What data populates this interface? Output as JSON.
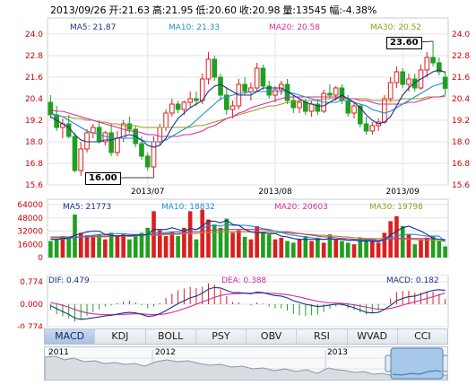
{
  "header": {
    "date": "2013/09/26",
    "open": "开:21.63",
    "high": "高:21.95",
    "low": "低:20.60",
    "close": "收:20.98",
    "volume": "量:13545",
    "change": "幅:-4.38%"
  },
  "price_legend": {
    "ma5": "MA5: 21.87",
    "ma10": "MA10: 21.33",
    "ma20": "MA20: 20.58",
    "ma30": "MA30: 20.52"
  },
  "volume_legend": {
    "ma5": "MA5: 21773",
    "ma10": "MA10: 18832",
    "ma20": "MA20: 20603",
    "ma30": "MA30: 19798"
  },
  "macd_legend": {
    "dif": "DIF: 0.479",
    "dea": "DEA: 0.388",
    "macd": "MACD: 0.182"
  },
  "annotations": {
    "high": "23.60",
    "low": "16.00"
  },
  "tabs": [
    "MACD",
    "KDJ",
    "BOLL",
    "PSY",
    "OBV",
    "RSI",
    "WVAD",
    "CCI"
  ],
  "overview_years": [
    "2011",
    "2012",
    "2013"
  ],
  "colors": {
    "up": "#dd1e1e",
    "down": "#1fa01f",
    "ma5": "#1b2f8c",
    "ma10": "#1b8fd2",
    "ma20": "#d82a9c",
    "ma30": "#9a9a1a",
    "grid": "#dfe3ea",
    "tab_active": "#a9c1e4"
  },
  "chart_data": [
    {
      "type": "candlestick",
      "title": "",
      "x_tick_labels": [
        "2013/07",
        "2013/08",
        "2013/09"
      ],
      "y_ticks": [
        15.6,
        16.8,
        18.0,
        19.2,
        20.4,
        21.6,
        22.8,
        24.0
      ],
      "ylim": [
        15.6,
        24.0
      ],
      "grid": true,
      "candles": [
        [
          20.2,
          20.6,
          19.3,
          19.5
        ],
        [
          19.5,
          20.0,
          18.6,
          18.8
        ],
        [
          18.8,
          19.3,
          18.2,
          19.0
        ],
        [
          19.0,
          19.5,
          18.2,
          18.3
        ],
        [
          18.3,
          18.5,
          16.3,
          16.4
        ],
        [
          16.4,
          18.0,
          16.1,
          17.6
        ],
        [
          17.6,
          18.7,
          17.4,
          18.5
        ],
        [
          18.5,
          19.0,
          18.2,
          18.8
        ],
        [
          18.8,
          19.2,
          17.9,
          18.0
        ],
        [
          18.0,
          18.6,
          17.8,
          18.5
        ],
        [
          18.5,
          19.0,
          17.2,
          17.4
        ],
        [
          17.4,
          18.6,
          17.2,
          18.2
        ],
        [
          18.2,
          19.2,
          18.0,
          19.0
        ],
        [
          19.0,
          19.4,
          18.5,
          18.7
        ],
        [
          18.7,
          18.9,
          17.7,
          17.9
        ],
        [
          17.9,
          18.3,
          17.0,
          17.2
        ],
        [
          17.2,
          17.4,
          16.4,
          16.6
        ],
        [
          16.6,
          18.3,
          16.0,
          18.0
        ],
        [
          18.0,
          19.0,
          17.8,
          18.8
        ],
        [
          18.8,
          19.8,
          18.6,
          19.6
        ],
        [
          19.6,
          20.4,
          19.4,
          20.1
        ],
        [
          20.1,
          20.3,
          19.6,
          19.8
        ],
        [
          19.8,
          20.3,
          19.5,
          20.2
        ],
        [
          20.2,
          20.8,
          19.9,
          20.4
        ],
        [
          20.4,
          20.8,
          20.0,
          20.3
        ],
        [
          20.3,
          21.8,
          20.1,
          21.5
        ],
        [
          21.5,
          23.0,
          21.2,
          22.6
        ],
        [
          22.6,
          22.8,
          21.4,
          21.6
        ],
        [
          21.6,
          21.8,
          20.3,
          20.6
        ],
        [
          20.6,
          21.0,
          19.5,
          19.8
        ],
        [
          19.8,
          20.3,
          19.3,
          20.0
        ],
        [
          20.0,
          21.5,
          19.8,
          21.2
        ],
        [
          21.2,
          21.6,
          20.6,
          20.8
        ],
        [
          20.8,
          21.3,
          20.3,
          21.0
        ],
        [
          21.0,
          22.4,
          20.8,
          22.1
        ],
        [
          22.1,
          22.3,
          20.9,
          21.1
        ],
        [
          21.1,
          21.4,
          20.4,
          20.6
        ],
        [
          20.6,
          21.1,
          20.2,
          20.9
        ],
        [
          20.9,
          21.4,
          20.6,
          21.2
        ],
        [
          21.2,
          21.5,
          20.1,
          20.3
        ],
        [
          20.3,
          20.6,
          19.6,
          19.9
        ],
        [
          19.9,
          20.4,
          19.6,
          20.2
        ],
        [
          20.2,
          20.4,
          19.5,
          19.7
        ],
        [
          19.7,
          20.3,
          19.4,
          20.1
        ],
        [
          20.1,
          20.4,
          19.5,
          19.7
        ],
        [
          19.7,
          20.9,
          19.6,
          20.7
        ],
        [
          20.7,
          21.2,
          20.4,
          20.6
        ],
        [
          20.6,
          21.1,
          20.3,
          21.0
        ],
        [
          21.0,
          21.2,
          20.1,
          20.3
        ],
        [
          20.3,
          20.6,
          19.4,
          19.6
        ],
        [
          19.6,
          20.2,
          19.3,
          20.0
        ],
        [
          20.0,
          20.1,
          18.8,
          19.0
        ],
        [
          19.0,
          19.4,
          18.4,
          18.6
        ],
        [
          18.6,
          19.1,
          18.4,
          18.9
        ],
        [
          18.9,
          19.3,
          18.6,
          19.1
        ],
        [
          19.1,
          20.6,
          19.0,
          20.4
        ],
        [
          20.4,
          21.6,
          20.2,
          21.3
        ],
        [
          21.3,
          22.2,
          21.0,
          21.9
        ],
        [
          21.9,
          22.1,
          21.0,
          21.2
        ],
        [
          21.2,
          21.8,
          20.8,
          21.5
        ],
        [
          21.5,
          21.8,
          20.8,
          21.0
        ],
        [
          21.0,
          22.3,
          20.9,
          22.0
        ],
        [
          22.0,
          23.0,
          21.6,
          22.7
        ],
        [
          22.7,
          23.6,
          22.2,
          22.4
        ],
        [
          22.4,
          22.7,
          21.7,
          21.9
        ],
        [
          21.6,
          21.95,
          20.6,
          20.98
        ]
      ],
      "ma5": [
        19.4,
        19.2,
        19.0,
        18.8,
        18.4,
        18.1,
        18.0,
        18.0,
        18.0,
        18.1,
        18.1,
        18.2,
        18.3,
        18.4,
        18.3,
        18.1,
        17.8,
        17.7,
        17.8,
        18.2,
        18.8,
        19.3,
        19.6,
        19.9,
        20.1,
        20.3,
        20.8,
        21.1,
        21.2,
        21.0,
        20.8,
        20.6,
        20.6,
        20.6,
        20.8,
        21.0,
        21.0,
        21.0,
        21.0,
        20.8,
        20.6,
        20.4,
        20.2,
        20.1,
        20.0,
        20.0,
        20.2,
        20.4,
        20.6,
        20.4,
        20.2,
        19.9,
        19.5,
        19.2,
        19.0,
        19.1,
        19.4,
        20.0,
        20.6,
        21.0,
        21.3,
        21.5,
        21.7,
        21.9,
        22.0,
        21.87
      ],
      "ma10": [
        19.6,
        19.5,
        19.4,
        19.2,
        19.0,
        18.8,
        18.6,
        18.5,
        18.4,
        18.3,
        18.2,
        18.2,
        18.2,
        18.2,
        18.2,
        18.1,
        18.0,
        18.0,
        18.0,
        18.1,
        18.3,
        18.5,
        18.7,
        18.9,
        19.2,
        19.5,
        19.8,
        20.1,
        20.4,
        20.5,
        20.6,
        20.7,
        20.7,
        20.8,
        20.8,
        20.8,
        20.8,
        20.8,
        20.8,
        20.8,
        20.7,
        20.6,
        20.5,
        20.4,
        20.3,
        20.2,
        20.2,
        20.2,
        20.3,
        20.3,
        20.2,
        20.1,
        20.0,
        19.8,
        19.7,
        19.6,
        19.7,
        19.9,
        20.1,
        20.3,
        20.5,
        20.7,
        20.9,
        21.1,
        21.2,
        21.33
      ],
      "ma20": [
        19.8,
        19.7,
        19.7,
        19.6,
        19.5,
        19.4,
        19.3,
        19.2,
        19.1,
        19.0,
        18.9,
        18.8,
        18.7,
        18.6,
        18.6,
        18.5,
        18.4,
        18.4,
        18.3,
        18.3,
        18.3,
        18.3,
        18.4,
        18.4,
        18.5,
        18.6,
        18.8,
        18.9,
        19.1,
        19.3,
        19.4,
        19.6,
        19.7,
        19.9,
        20.0,
        20.1,
        20.2,
        20.3,
        20.4,
        20.5,
        20.5,
        20.5,
        20.5,
        20.5,
        20.5,
        20.5,
        20.5,
        20.5,
        20.5,
        20.4,
        20.4,
        20.3,
        20.3,
        20.2,
        20.1,
        20.1,
        20.1,
        20.1,
        20.1,
        20.2,
        20.2,
        20.3,
        20.4,
        20.5,
        20.5,
        20.58
      ],
      "ma30": [
        19.5,
        19.5,
        19.4,
        19.4,
        19.3,
        19.3,
        19.2,
        19.2,
        19.1,
        19.1,
        19.0,
        19.0,
        18.9,
        18.9,
        18.9,
        18.8,
        18.8,
        18.8,
        18.8,
        18.8,
        18.8,
        18.8,
        18.8,
        18.8,
        18.9,
        18.9,
        19.0,
        19.1,
        19.2,
        19.3,
        19.4,
        19.5,
        19.6,
        19.7,
        19.8,
        19.9,
        20.0,
        20.0,
        20.1,
        20.2,
        20.2,
        20.3,
        20.3,
        20.3,
        20.3,
        20.4,
        20.4,
        20.4,
        20.4,
        20.4,
        20.4,
        20.4,
        20.4,
        20.3,
        20.3,
        20.3,
        20.3,
        20.3,
        20.4,
        20.4,
        20.4,
        20.4,
        20.5,
        20.5,
        20.5,
        20.52
      ]
    },
    {
      "type": "bar",
      "title": "",
      "y_ticks": [
        0,
        16000,
        32000,
        48000,
        64000
      ],
      "ylim": [
        0,
        64000
      ],
      "grid": true,
      "values": [
        20000,
        22000,
        26000,
        24000,
        52000,
        30000,
        27000,
        25000,
        28000,
        22000,
        30000,
        27000,
        28000,
        22000,
        26000,
        30000,
        36000,
        56000,
        33000,
        26000,
        31000,
        26000,
        36000,
        56000,
        22000,
        58000,
        46000,
        40000,
        36000,
        47000,
        30000,
        33000,
        25000,
        22000,
        38000,
        30000,
        28000,
        22000,
        24000,
        20000,
        18000,
        22000,
        26000,
        20000,
        24000,
        18000,
        28000,
        22000,
        20000,
        18000,
        16000,
        24000,
        22000,
        20000,
        18000,
        30000,
        44000,
        50000,
        38000,
        28000,
        16000,
        22000,
        24000,
        26000,
        20000,
        13545
      ],
      "ma5": [
        22000,
        22000,
        23000,
        24000,
        27000,
        29000,
        31000,
        32000,
        32000,
        28000,
        27000,
        26000,
        27000,
        26000,
        27000,
        27000,
        28000,
        34000,
        34000,
        34000,
        36000,
        34000,
        32000,
        35000,
        34000,
        38000,
        44000,
        44000,
        42000,
        45000,
        40000,
        39000,
        34000,
        31000,
        30000,
        30000,
        29000,
        29000,
        26000,
        25000,
        23000,
        22000,
        22000,
        22000,
        22000,
        22000,
        23000,
        22000,
        22000,
        21000,
        21000,
        20000,
        20000,
        20000,
        19000,
        22000,
        27000,
        32000,
        36000,
        38000,
        35000,
        32000,
        28000,
        23000,
        22000,
        21773
      ],
      "ma10": [
        22000,
        22000,
        22000,
        23000,
        24000,
        25000,
        26000,
        27000,
        28000,
        28000,
        29000,
        29000,
        29000,
        28000,
        28000,
        28000,
        27000,
        30000,
        30000,
        30000,
        31000,
        31000,
        32000,
        34000,
        34000,
        36000,
        38000,
        39000,
        38000,
        40000,
        39000,
        39000,
        39000,
        38000,
        37000,
        35000,
        34000,
        32000,
        31000,
        28000,
        27000,
        26000,
        25000,
        24000,
        23000,
        22000,
        22000,
        22000,
        22000,
        21000,
        21000,
        21000,
        21000,
        21000,
        20000,
        21000,
        24000,
        26000,
        28000,
        28000,
        28000,
        27000,
        26000,
        26000,
        26000,
        18832
      ],
      "ma20": [
        24000,
        24000,
        24000,
        24000,
        25000,
        25000,
        25000,
        26000,
        26000,
        26000,
        26000,
        26000,
        26000,
        27000,
        27000,
        27000,
        28000,
        28000,
        28000,
        29000,
        29000,
        29000,
        30000,
        31000,
        31000,
        32000,
        33000,
        33000,
        34000,
        34000,
        34000,
        34000,
        34000,
        34000,
        34000,
        34000,
        33000,
        32000,
        31000,
        31000,
        30000,
        29000,
        28000,
        27000,
        26000,
        25000,
        25000,
        24000,
        23000,
        23000,
        22000,
        22000,
        22000,
        22000,
        21000,
        22000,
        22000,
        23000,
        23000,
        23000,
        23000,
        23000,
        23000,
        23000,
        22000,
        20603
      ],
      "ma30": [
        25000,
        25000,
        25000,
        25000,
        25000,
        25000,
        25000,
        25000,
        25000,
        25000,
        26000,
        26000,
        26000,
        26000,
        26000,
        27000,
        27000,
        27000,
        27000,
        28000,
        28000,
        28000,
        29000,
        29000,
        29000,
        30000,
        30000,
        30000,
        31000,
        31000,
        31000,
        31000,
        31000,
        31000,
        31000,
        31000,
        31000,
        30000,
        30000,
        30000,
        29000,
        29000,
        28000,
        28000,
        27000,
        27000,
        26000,
        26000,
        25000,
        25000,
        24000,
        24000,
        23000,
        23000,
        23000,
        23000,
        23000,
        23000,
        22000,
        22000,
        22000,
        21000,
        21000,
        21000,
        20000,
        19798
      ]
    },
    {
      "type": "line",
      "title": "MACD",
      "y_ticks": [
        0.774,
        0.0,
        -0.774
      ],
      "ylim": [
        -0.774,
        0.774
      ],
      "grid": true,
      "dif": [
        -0.05,
        -0.15,
        -0.25,
        -0.35,
        -0.48,
        -0.52,
        -0.5,
        -0.47,
        -0.44,
        -0.4,
        -0.38,
        -0.34,
        -0.3,
        -0.28,
        -0.3,
        -0.35,
        -0.42,
        -0.4,
        -0.33,
        -0.22,
        -0.1,
        0.02,
        0.12,
        0.22,
        0.28,
        0.38,
        0.52,
        0.58,
        0.56,
        0.48,
        0.4,
        0.4,
        0.38,
        0.36,
        0.42,
        0.4,
        0.34,
        0.3,
        0.28,
        0.22,
        0.12,
        0.06,
        0.0,
        -0.04,
        -0.08,
        -0.06,
        -0.03,
        0.0,
        0.0,
        -0.06,
        -0.12,
        -0.2,
        -0.28,
        -0.3,
        -0.28,
        -0.18,
        -0.04,
        0.12,
        0.2,
        0.26,
        0.28,
        0.34,
        0.42,
        0.48,
        0.5,
        0.479
      ],
      "dea": [
        0.05,
        0.02,
        -0.04,
        -0.1,
        -0.18,
        -0.25,
        -0.3,
        -0.33,
        -0.35,
        -0.36,
        -0.36,
        -0.36,
        -0.35,
        -0.34,
        -0.33,
        -0.33,
        -0.35,
        -0.36,
        -0.35,
        -0.33,
        -0.28,
        -0.22,
        -0.15,
        -0.08,
        0.0,
        0.08,
        0.16,
        0.24,
        0.3,
        0.34,
        0.36,
        0.37,
        0.38,
        0.38,
        0.39,
        0.39,
        0.38,
        0.37,
        0.35,
        0.33,
        0.29,
        0.25,
        0.2,
        0.15,
        0.1,
        0.07,
        0.05,
        0.04,
        0.03,
        0.01,
        -0.02,
        -0.06,
        -0.1,
        -0.14,
        -0.17,
        -0.17,
        -0.14,
        -0.09,
        -0.03,
        0.03,
        0.08,
        0.14,
        0.2,
        0.26,
        0.32,
        0.388
      ],
      "macd": [
        -0.2,
        -0.34,
        -0.42,
        -0.5,
        -0.6,
        -0.54,
        -0.4,
        -0.28,
        -0.18,
        -0.08,
        -0.04,
        0.04,
        0.1,
        0.12,
        0.06,
        -0.04,
        -0.14,
        -0.08,
        0.04,
        0.22,
        0.36,
        0.48,
        0.54,
        0.6,
        0.56,
        0.6,
        0.72,
        0.68,
        0.52,
        0.28,
        0.08,
        0.06,
        0.0,
        -0.04,
        0.06,
        0.02,
        -0.08,
        -0.14,
        -0.14,
        -0.22,
        -0.34,
        -0.38,
        -0.4,
        -0.38,
        -0.36,
        -0.26,
        -0.16,
        -0.08,
        -0.06,
        -0.14,
        -0.2,
        -0.28,
        -0.36,
        -0.32,
        -0.22,
        -0.02,
        0.2,
        0.42,
        0.46,
        0.46,
        0.4,
        0.4,
        0.44,
        0.44,
        0.36,
        0.182
      ]
    }
  ]
}
